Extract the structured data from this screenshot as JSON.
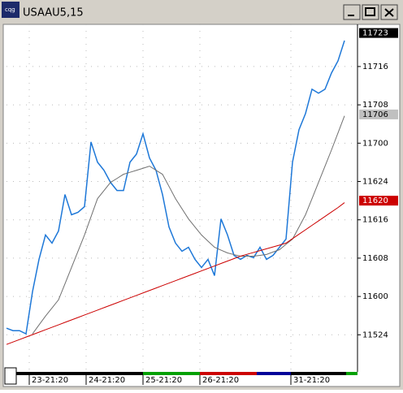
{
  "window": {
    "title": "USAAU5,15"
  },
  "chart_data": {
    "type": "line",
    "xlim": [
      0,
      54
    ],
    "xticks": [
      {
        "value": 3.5,
        "label": "23-21:20"
      },
      {
        "value": 12.25,
        "label": "24-21:20"
      },
      {
        "value": 21,
        "label": "25-21:20"
      },
      {
        "value": 29.75,
        "label": "26-21:20"
      },
      {
        "value": 43.75,
        "label": "31-21:20"
      }
    ],
    "ylim": [
      115.508,
      117.775
    ],
    "yticks": [
      {
        "value": 117.5,
        "label": "11716"
      },
      {
        "value": 117.25,
        "label": "11708"
      },
      {
        "value": 117,
        "label": "11700"
      },
      {
        "value": 116.75,
        "label": "11624"
      },
      {
        "value": 116.5,
        "label": "11616"
      },
      {
        "value": 116.25,
        "label": "11608"
      },
      {
        "value": 116,
        "label": "11600"
      },
      {
        "value": 115.75,
        "label": "11524"
      }
    ],
    "grid": true,
    "series": [
      {
        "color": "#1e78d8",
        "values": [
          115.793,
          115.777,
          115.777,
          115.756,
          116.031,
          116.242,
          116.401,
          116.348,
          116.427,
          116.665,
          116.533,
          116.549,
          116.586,
          117.008,
          116.876,
          116.823,
          116.744,
          116.691,
          116.691,
          116.876,
          116.929,
          117.061,
          116.903,
          116.823,
          116.665,
          116.453,
          116.348,
          116.295,
          116.321,
          116.242,
          116.189,
          116.242,
          116.136,
          116.506,
          116.401,
          116.268,
          116.242,
          116.268,
          116.253,
          116.321,
          116.242,
          116.268,
          116.321,
          116.374,
          116.876,
          117.088,
          117.193,
          117.352,
          117.326,
          117.352,
          117.458,
          117.537,
          117.669
        ]
      },
      {
        "color": "#707070",
        "values": [
          null,
          null,
          null,
          null,
          115.756,
          115.814,
          115.872,
          115.925,
          115.978,
          116.083,
          116.189,
          116.295,
          116.401,
          116.52,
          116.638,
          116.691,
          116.744,
          116.77,
          116.797,
          116.81,
          116.823,
          116.836,
          116.85,
          116.823,
          116.797,
          116.718,
          116.638,
          116.572,
          116.506,
          116.453,
          116.401,
          116.361,
          116.321,
          116.302,
          116.284,
          116.273,
          116.263,
          116.263,
          116.263,
          116.268,
          116.274,
          116.29,
          116.305,
          116.34,
          116.374,
          116.453,
          116.533,
          116.638,
          116.744,
          116.85,
          116.956,
          117.067,
          117.178
        ]
      },
      {
        "color": "#cc0000",
        "values": [
          115.687,
          115.703,
          115.719,
          115.735,
          115.751,
          115.767,
          115.783,
          115.799,
          115.815,
          115.831,
          115.847,
          115.863,
          115.879,
          115.895,
          115.911,
          115.927,
          115.943,
          115.959,
          115.975,
          115.991,
          116.007,
          116.023,
          116.039,
          116.055,
          116.071,
          116.087,
          116.103,
          116.119,
          116.135,
          116.151,
          116.167,
          116.183,
          116.199,
          116.215,
          116.231,
          116.247,
          116.263,
          116.275,
          116.287,
          116.299,
          116.311,
          116.323,
          116.335,
          116.348,
          116.377,
          116.406,
          116.435,
          116.464,
          116.493,
          116.522,
          116.551,
          116.58,
          116.612
        ]
      }
    ],
    "price_markers": [
      {
        "value": 117.71875,
        "label": "11723",
        "color": "#000000",
        "text_color": "#ffffff"
      },
      {
        "value": 117.1875,
        "label": "11706",
        "color": "#c0c0c0",
        "text_color": "#000000"
      },
      {
        "value": 116.625,
        "label": "11620",
        "color": "#cc0000",
        "text_color": "#ffffff"
      }
    ]
  }
}
